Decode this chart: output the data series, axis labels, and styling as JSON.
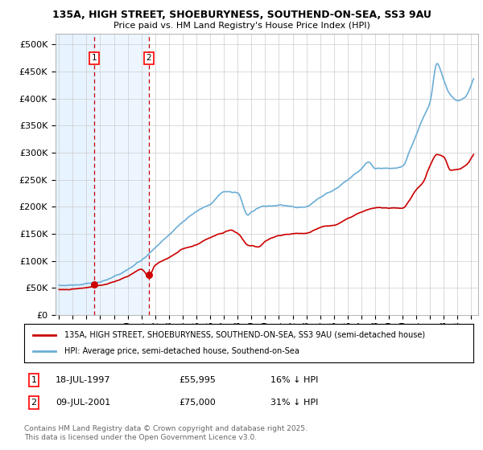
{
  "title1": "135A, HIGH STREET, SHOEBURYNESS, SOUTHEND-ON-SEA, SS3 9AU",
  "title2": "Price paid vs. HM Land Registry's House Price Index (HPI)",
  "ylim": [
    0,
    520000
  ],
  "xlim_start": 1994.75,
  "xlim_end": 2025.5,
  "legend_line1": "135A, HIGH STREET, SHOEBURYNESS, SOUTHEND-ON-SEA, SS3 9AU (semi-detached house)",
  "legend_line2": "HPI: Average price, semi-detached house, Southend-on-Sea",
  "sale1_date": "18-JUL-1997",
  "sale1_price": "£55,995",
  "sale1_hpi": "16% ↓ HPI",
  "sale1_year": 1997.54,
  "sale1_value": 55995,
  "sale2_date": "09-JUL-2001",
  "sale2_price": "£75,000",
  "sale2_hpi": "31% ↓ HPI",
  "sale2_year": 2001.52,
  "sale2_value": 75000,
  "copyright": "Contains HM Land Registry data © Crown copyright and database right 2025.\nThis data is licensed under the Open Government Licence v3.0.",
  "hpi_color": "#6baed6",
  "price_color": "#cc0000",
  "vline_color": "#cc0000",
  "shade_color": "#ddeeff",
  "grid_color": "#cccccc",
  "bg_color": "#ffffff"
}
